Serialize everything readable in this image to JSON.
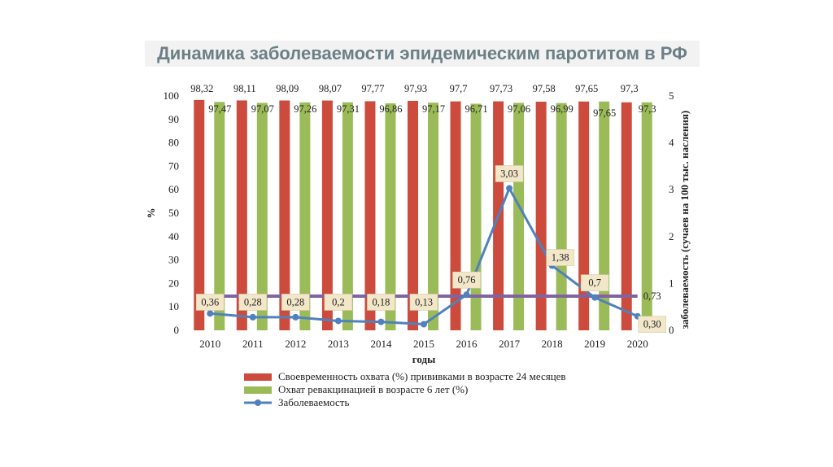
{
  "title": "Динамика заболеваемости эпидемическим паротитом в РФ",
  "chart_data": {
    "type": "bar",
    "categories": [
      "2010",
      "2011",
      "2012",
      "2013",
      "2014",
      "2015",
      "2016",
      "2017",
      "2018",
      "2019",
      "2020"
    ],
    "xlabel": "годы",
    "ylabel": "%",
    "y2label": "заболеваемость (сучаев на 100 тыс. насления)",
    "ylim": [
      0,
      100
    ],
    "y2lim": [
      0,
      5
    ],
    "yticks": [
      "0",
      "10",
      "20",
      "30",
      "40",
      "50",
      "60",
      "70",
      "80",
      "90",
      "100"
    ],
    "y2ticks": [
      "0",
      "1",
      "2",
      "3",
      "4",
      "5"
    ],
    "series": [
      {
        "name": "Своевременность охвата  (%) прививками в возрасте 24 месяцев",
        "type": "bar",
        "axis": "left",
        "color": "#cc4b3c",
        "values": [
          98.32,
          98.11,
          98.09,
          98.07,
          97.77,
          97.93,
          97.7,
          97.73,
          97.58,
          97.65,
          97.3
        ],
        "labels": [
          "98,32",
          "98,11",
          "98,09",
          "98,07",
          "97,77",
          "97,93",
          "97,7",
          "97,73",
          "97,58",
          "97,65",
          "97,3"
        ]
      },
      {
        "name": "Охват ревакцинацией в возрасте 6 лет (%)",
        "type": "bar",
        "axis": "left",
        "color": "#9bbb59",
        "values": [
          97.47,
          97.07,
          97.26,
          97.31,
          96.86,
          97.17,
          96.71,
          97.06,
          96.99,
          97.65,
          97.3
        ],
        "labels": [
          "97,47",
          "97,07",
          "97,26",
          "97,31",
          "96,86",
          "97,17",
          "96,71",
          "97,06",
          "96,99",
          "97,65",
          "97,3"
        ]
      },
      {
        "name": "Заболеваемость",
        "type": "line",
        "axis": "right",
        "color": "#4f81bd",
        "values": [
          0.36,
          0.28,
          0.28,
          0.2,
          0.18,
          0.13,
          0.76,
          3.03,
          1.38,
          0.7,
          0.3
        ],
        "labels": [
          "0,36",
          "0,28",
          "0,28",
          "0,2",
          "0,18",
          "0,13",
          "0,76",
          "3,03",
          "1,38",
          "0,7",
          "0,30"
        ]
      }
    ],
    "reference_line": {
      "axis": "right",
      "value": 0.73,
      "label": "0,73",
      "color": "#8064a2"
    },
    "grid": false,
    "legend": "bottom"
  }
}
